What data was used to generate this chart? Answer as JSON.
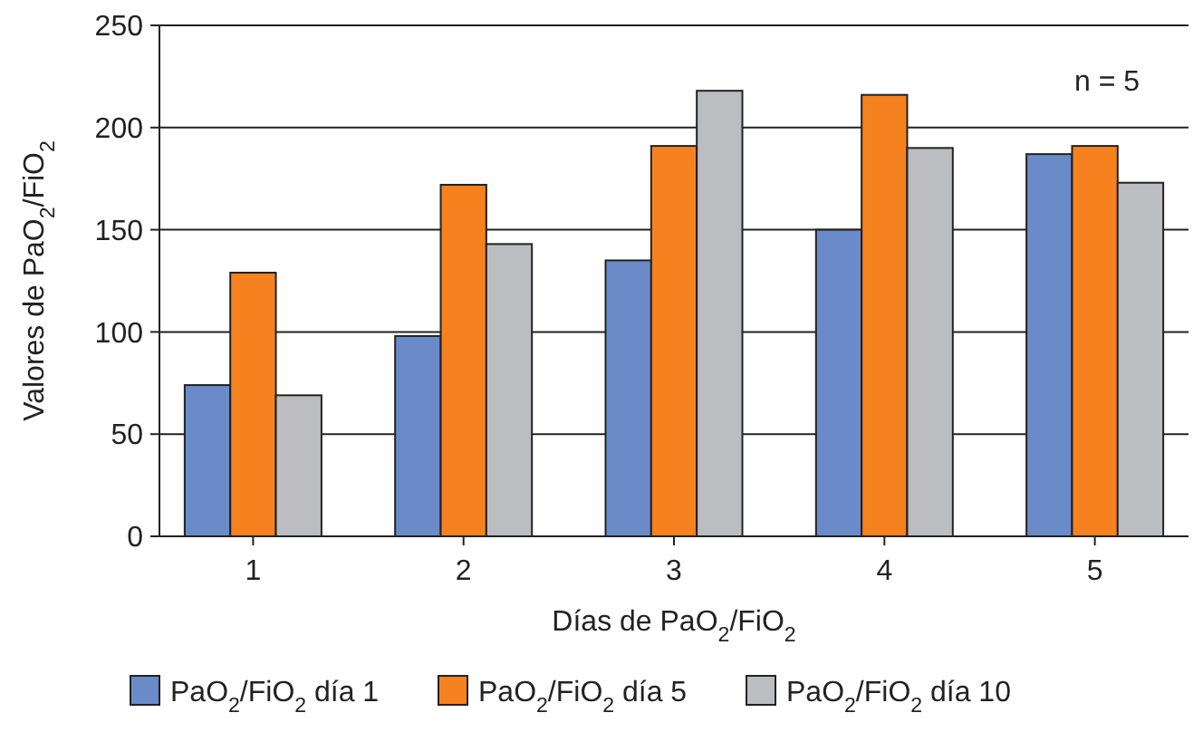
{
  "chart_data": {
    "type": "bar",
    "xlabel": "Días de PaO$_{2}$/FiO$_{2}$",
    "ylabel": "Valores de PaO$_{2}$/FiO$_{2}$",
    "categories": [
      "1",
      "2",
      "3",
      "4",
      "5"
    ],
    "series": [
      {
        "name": "PaO$_{2}$/FiO$_{2}$ día 1",
        "color": "#6a8bc8",
        "values": [
          74,
          98,
          135,
          150,
          187
        ]
      },
      {
        "name": "PaO$_{2}$/FiO$_{2}$ día 5",
        "color": "#f5821f",
        "values": [
          129,
          172,
          191,
          216,
          191
        ]
      },
      {
        "name": "PaO$_{2}$/FiO$_{2}$ día 10",
        "color": "#bcbdc0",
        "values": [
          69,
          143,
          218,
          190,
          173
        ]
      }
    ],
    "ylim": [
      0,
      250
    ],
    "yticks": [
      0,
      50,
      100,
      150,
      200,
      250
    ],
    "grid": "y",
    "legend": "bottom",
    "annotations": [
      "n = 5"
    ]
  }
}
